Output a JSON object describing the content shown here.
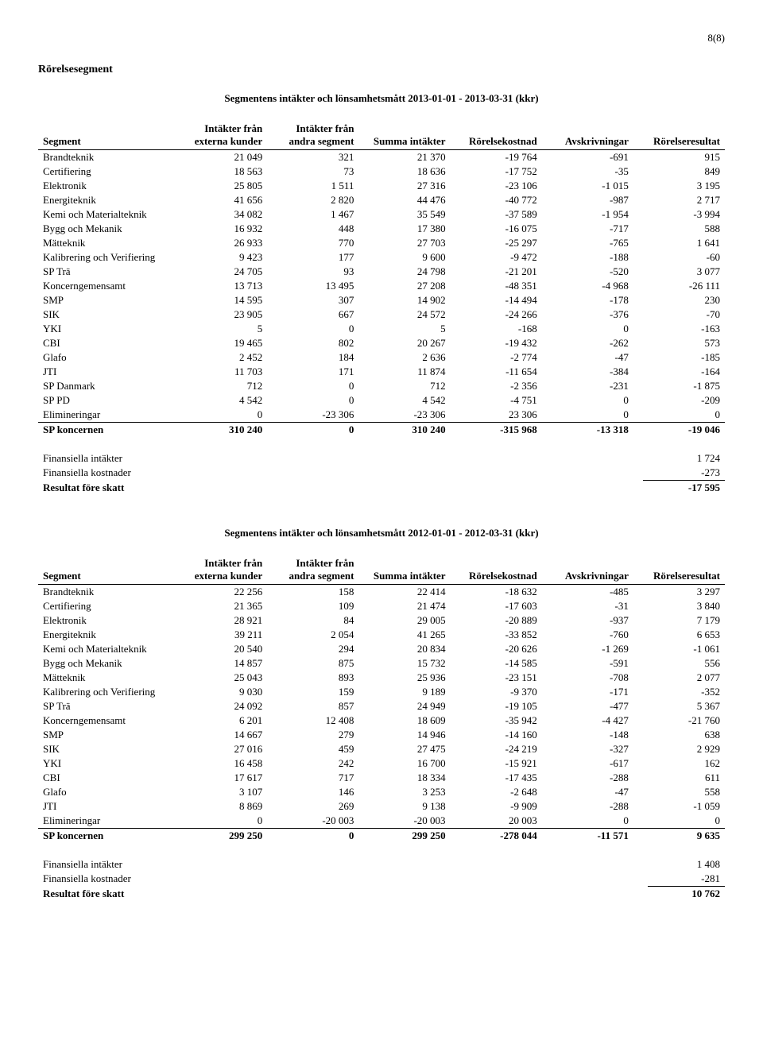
{
  "page_number": "8(8)",
  "section_title": "Rörelsesegment",
  "tables": [
    {
      "title": "Segmentens intäkter och lönsamhetsmått 2013-01-01 - 2013-03-31 (kkr)",
      "columns": [
        "Segment",
        "Intäkter från externa kunder",
        "Intäkter från andra segment",
        "Summa intäkter",
        "Rörelsekostnad",
        "Avskrivningar",
        "Rörelseresultat"
      ],
      "rows": [
        [
          "Brandteknik",
          "21 049",
          "321",
          "21 370",
          "-19 764",
          "-691",
          "915"
        ],
        [
          "Certifiering",
          "18 563",
          "73",
          "18 636",
          "-17 752",
          "-35",
          "849"
        ],
        [
          "Elektronik",
          "25 805",
          "1 511",
          "27 316",
          "-23 106",
          "-1 015",
          "3 195"
        ],
        [
          "Energiteknik",
          "41 656",
          "2 820",
          "44 476",
          "-40 772",
          "-987",
          "2 717"
        ],
        [
          "Kemi och Materialteknik",
          "34 082",
          "1 467",
          "35 549",
          "-37 589",
          "-1 954",
          "-3 994"
        ],
        [
          "Bygg och Mekanik",
          "16 932",
          "448",
          "17 380",
          "-16 075",
          "-717",
          "588"
        ],
        [
          "Mätteknik",
          "26 933",
          "770",
          "27 703",
          "-25 297",
          "-765",
          "1 641"
        ],
        [
          "Kalibrering och Verifiering",
          "9 423",
          "177",
          "9 600",
          "-9 472",
          "-188",
          "-60"
        ],
        [
          "SP Trä",
          "24 705",
          "93",
          "24 798",
          "-21 201",
          "-520",
          "3 077"
        ],
        [
          "Koncerngemensamt",
          "13 713",
          "13 495",
          "27 208",
          "-48 351",
          "-4 968",
          "-26 111"
        ],
        [
          "SMP",
          "14 595",
          "307",
          "14 902",
          "-14 494",
          "-178",
          "230"
        ],
        [
          "SIK",
          "23 905",
          "667",
          "24 572",
          "-24 266",
          "-376",
          "-70"
        ],
        [
          "YKI",
          "5",
          "0",
          "5",
          "-168",
          "0",
          "-163"
        ],
        [
          "CBI",
          "19 465",
          "802",
          "20 267",
          "-19 432",
          "-262",
          "573"
        ],
        [
          "Glafo",
          "2 452",
          "184",
          "2 636",
          "-2 774",
          "-47",
          "-185"
        ],
        [
          "JTI",
          "11 703",
          "171",
          "11 874",
          "-11 654",
          "-384",
          "-164"
        ],
        [
          "SP Danmark",
          "712",
          "0",
          "712",
          "-2 356",
          "-231",
          "-1 875"
        ],
        [
          "SP PD",
          "4 542",
          "0",
          "4 542",
          "-4 751",
          "0",
          "-209"
        ],
        [
          "Elimineringar",
          "0",
          "-23 306",
          "-23 306",
          "23 306",
          "0",
          "0"
        ]
      ],
      "total": [
        "SP koncernen",
        "310 240",
        "0",
        "310 240",
        "-315 968",
        "-13 318",
        "-19 046"
      ],
      "summary": [
        [
          "Finansiella intäkter",
          "1 724"
        ],
        [
          "Finansiella kostnader",
          "-273"
        ]
      ],
      "result": [
        "Resultat före skatt",
        "-17 595"
      ]
    },
    {
      "title": "Segmentens intäkter och lönsamhetsmått 2012-01-01 - 2012-03-31 (kkr)",
      "columns": [
        "Segment",
        "Intäkter från externa kunder",
        "Intäkter från andra segment",
        "Summa intäkter",
        "Rörelsekostnad",
        "Avskrivningar",
        "Rörelseresultat"
      ],
      "rows": [
        [
          "Brandteknik",
          "22 256",
          "158",
          "22 414",
          "-18 632",
          "-485",
          "3 297"
        ],
        [
          "Certifiering",
          "21 365",
          "109",
          "21 474",
          "-17 603",
          "-31",
          "3 840"
        ],
        [
          "Elektronik",
          "28 921",
          "84",
          "29 005",
          "-20 889",
          "-937",
          "7 179"
        ],
        [
          "Energiteknik",
          "39 211",
          "2 054",
          "41 265",
          "-33 852",
          "-760",
          "6 653"
        ],
        [
          "Kemi och Materialteknik",
          "20 540",
          "294",
          "20 834",
          "-20 626",
          "-1 269",
          "-1 061"
        ],
        [
          "Bygg och Mekanik",
          "14 857",
          "875",
          "15 732",
          "-14 585",
          "-591",
          "556"
        ],
        [
          "Mätteknik",
          "25 043",
          "893",
          "25 936",
          "-23 151",
          "-708",
          "2 077"
        ],
        [
          "Kalibrering och Verifiering",
          "9 030",
          "159",
          "9 189",
          "-9 370",
          "-171",
          "-352"
        ],
        [
          "SP Trä",
          "24 092",
          "857",
          "24 949",
          "-19 105",
          "-477",
          "5 367"
        ],
        [
          "Koncerngemensamt",
          "6 201",
          "12 408",
          "18 609",
          "-35 942",
          "-4 427",
          "-21 760"
        ],
        [
          "SMP",
          "14 667",
          "279",
          "14 946",
          "-14 160",
          "-148",
          "638"
        ],
        [
          "SIK",
          "27 016",
          "459",
          "27 475",
          "-24 219",
          "-327",
          "2 929"
        ],
        [
          "YKI",
          "16 458",
          "242",
          "16 700",
          "-15 921",
          "-617",
          "162"
        ],
        [
          "CBI",
          "17 617",
          "717",
          "18 334",
          "-17 435",
          "-288",
          "611"
        ],
        [
          "Glafo",
          "3 107",
          "146",
          "3 253",
          "-2 648",
          "-47",
          "558"
        ],
        [
          "JTI",
          "8 869",
          "269",
          "9 138",
          "-9 909",
          "-288",
          "-1 059"
        ],
        [
          "Elimineringar",
          "0",
          "-20 003",
          "-20 003",
          "20 003",
          "0",
          "0"
        ]
      ],
      "total": [
        "SP koncernen",
        "299 250",
        "0",
        "299 250",
        "-278 044",
        "-11 571",
        "9 635"
      ],
      "summary": [
        [
          "Finansiella intäkter",
          "1 408"
        ],
        [
          "Finansiella kostnader",
          "-281"
        ]
      ],
      "result": [
        "Resultat före skatt",
        "10 762"
      ]
    }
  ]
}
